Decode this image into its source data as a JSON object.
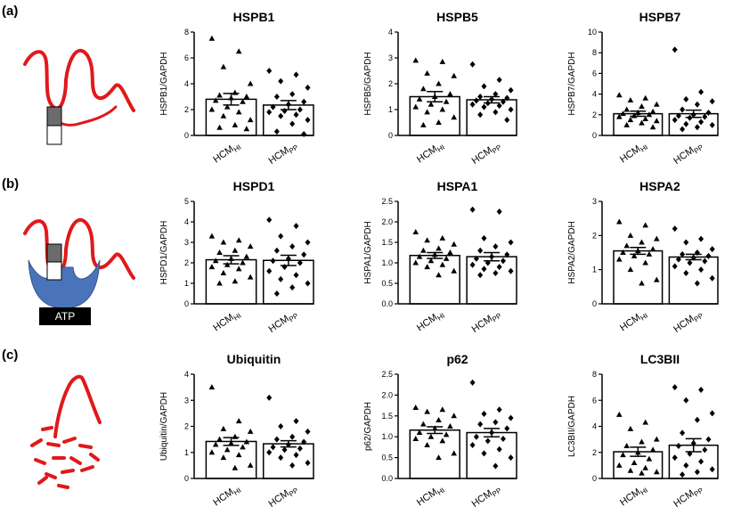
{
  "panel_labels": [
    "(a)",
    "(b)",
    "(c)"
  ],
  "illustration_labels": [
    "ATP"
  ],
  "chart_data": [
    {
      "type": "bar",
      "title": "HSPB1",
      "ylabel": "HSPB1/GAPDH",
      "categories": [
        "HCM",
        "HCM"
      ],
      "category_subscripts": [
        "HI",
        "PP"
      ],
      "values": [
        2.8,
        2.35
      ],
      "errors": [
        0.45,
        0.35
      ],
      "points": [
        [
          7.5,
          6.5,
          5.3,
          4.0,
          3.3,
          3.1,
          3.0,
          2.9,
          2.7,
          2.6,
          2.2,
          2.0,
          1.8,
          1.5,
          1.2,
          0.8,
          0.6,
          0.5
        ],
        [
          5.0,
          4.7,
          4.2,
          3.7,
          3.2,
          3.0,
          2.6,
          2.4,
          2.2,
          2.0,
          1.9,
          1.8,
          1.6,
          1.5,
          1.2,
          0.9,
          0.3,
          0.1
        ]
      ],
      "ylim": [
        0,
        8
      ],
      "yticks": [
        0,
        2,
        4,
        6,
        8
      ]
    },
    {
      "type": "bar",
      "title": "HSPB5",
      "ylabel": "HSPB5/GAPDH",
      "categories": [
        "HCM",
        "HCM"
      ],
      "category_subscripts": [
        "HI",
        "PP"
      ],
      "values": [
        1.5,
        1.38
      ],
      "errors": [
        0.2,
        0.12
      ],
      "points": [
        [
          2.9,
          2.85,
          2.4,
          2.3,
          2.0,
          1.8,
          1.6,
          1.5,
          1.4,
          1.3,
          1.2,
          1.1,
          1.0,
          0.9,
          0.7,
          0.5,
          0.4
        ],
        [
          2.75,
          2.15,
          1.9,
          1.75,
          1.6,
          1.5,
          1.45,
          1.4,
          1.35,
          1.3,
          1.25,
          1.2,
          1.15,
          1.1,
          1.0,
          0.9,
          0.8,
          0.6
        ]
      ],
      "ylim": [
        0,
        4
      ],
      "yticks": [
        0,
        1,
        2,
        3,
        4
      ]
    },
    {
      "type": "bar",
      "title": "HSPB7",
      "ylabel": "HSPB7/GAPDH",
      "categories": [
        "HCM",
        "HCM"
      ],
      "category_subscripts": [
        "HI",
        "PP"
      ],
      "values": [
        2.1,
        2.1
      ],
      "errors": [
        0.25,
        0.35
      ],
      "points": [
        [
          3.9,
          3.6,
          3.4,
          3.0,
          2.8,
          2.5,
          2.3,
          2.2,
          2.1,
          2.0,
          1.9,
          1.8,
          1.6,
          1.5,
          1.4,
          1.2,
          1.0,
          0.8
        ],
        [
          8.3,
          4.2,
          3.5,
          3.3,
          3.0,
          2.5,
          2.2,
          2.0,
          1.9,
          1.8,
          1.7,
          1.5,
          1.3,
          1.1,
          1.0,
          0.8,
          0.6
        ]
      ],
      "ylim": [
        0,
        10
      ],
      "yticks": [
        0,
        2,
        4,
        6,
        8,
        10
      ]
    },
    {
      "type": "bar",
      "title": "HSPD1",
      "ylabel": "HSPD1/GAPDH",
      "categories": [
        "HCM",
        "HCM"
      ],
      "category_subscripts": [
        "HI",
        "PP"
      ],
      "values": [
        2.15,
        2.12
      ],
      "errors": [
        0.2,
        0.25
      ],
      "points": [
        [
          3.3,
          3.1,
          3.0,
          2.8,
          2.6,
          2.5,
          2.3,
          2.2,
          2.1,
          2.0,
          1.9,
          1.8,
          1.7,
          1.5,
          1.3,
          1.1,
          1.0
        ],
        [
          4.1,
          3.8,
          3.3,
          3.0,
          2.8,
          2.6,
          2.4,
          2.2,
          2.1,
          2.0,
          1.8,
          1.6,
          1.4,
          1.2,
          1.0,
          0.8,
          0.5
        ]
      ],
      "ylim": [
        0,
        5
      ],
      "yticks": [
        0,
        1,
        2,
        3,
        4,
        5
      ]
    },
    {
      "type": "bar",
      "title": "HSPA1",
      "ylabel": "HSPA1/GAPDH",
      "categories": [
        "HCM",
        "HCM"
      ],
      "category_subscripts": [
        "HI",
        "PP"
      ],
      "values": [
        1.18,
        1.15
      ],
      "errors": [
        0.07,
        0.1
      ],
      "points": [
        [
          1.75,
          1.6,
          1.55,
          1.45,
          1.35,
          1.3,
          1.25,
          1.2,
          1.15,
          1.1,
          1.05,
          1.0,
          0.95,
          0.9,
          0.8,
          0.7
        ],
        [
          2.3,
          2.25,
          1.6,
          1.5,
          1.4,
          1.3,
          1.2,
          1.15,
          1.1,
          1.05,
          1.0,
          0.95,
          0.9,
          0.85,
          0.8,
          0.75,
          0.7
        ]
      ],
      "ylim": [
        0,
        2.5
      ],
      "yticks": [
        {
          "value": 0,
          "label": "0.0"
        },
        0.5,
        {
          "value": 1,
          "label": "1.0"
        },
        1.5,
        {
          "value": 2,
          "label": "2.0"
        },
        2.5
      ]
    },
    {
      "type": "bar",
      "title": "HSPA2",
      "ylabel": "HSPA2/GAPDH",
      "categories": [
        "HCM",
        "HCM"
      ],
      "category_subscripts": [
        "HI",
        "PP"
      ],
      "values": [
        1.55,
        1.37
      ],
      "errors": [
        0.1,
        0.08
      ],
      "points": [
        [
          2.4,
          2.3,
          2.0,
          1.9,
          1.8,
          1.7,
          1.6,
          1.55,
          1.5,
          1.45,
          1.4,
          1.3,
          1.2,
          1.0,
          0.7,
          0.6
        ],
        [
          2.2,
          1.9,
          1.8,
          1.6,
          1.5,
          1.45,
          1.4,
          1.35,
          1.3,
          1.25,
          1.2,
          1.1,
          1.0,
          0.9,
          0.75,
          0.6
        ]
      ],
      "ylim": [
        0,
        3
      ],
      "yticks": [
        0,
        1,
        2,
        3
      ]
    },
    {
      "type": "bar",
      "title": "Ubiquitin",
      "ylabel": "Ubiquitin/GAPDH",
      "categories": [
        "HCM",
        "HCM"
      ],
      "category_subscripts": [
        "HI",
        "PP"
      ],
      "values": [
        1.42,
        1.33
      ],
      "errors": [
        0.15,
        0.12
      ],
      "points": [
        [
          3.5,
          2.2,
          1.9,
          1.8,
          1.6,
          1.5,
          1.4,
          1.35,
          1.3,
          1.2,
          1.1,
          1.0,
          0.9,
          0.8,
          0.5,
          0.4
        ],
        [
          3.1,
          2.2,
          2.0,
          1.8,
          1.6,
          1.5,
          1.4,
          1.3,
          1.2,
          1.15,
          1.1,
          1.0,
          0.9,
          0.8,
          0.6,
          0.5
        ]
      ],
      "ylim": [
        0,
        4
      ],
      "yticks": [
        0,
        1,
        2,
        3,
        4
      ]
    },
    {
      "type": "bar",
      "title": "p62",
      "ylabel": "p62/GAPDH",
      "categories": [
        "HCM",
        "HCM"
      ],
      "category_subscripts": [
        "HI",
        "PP"
      ],
      "values": [
        1.16,
        1.1
      ],
      "errors": [
        0.08,
        0.1
      ],
      "points": [
        [
          1.7,
          1.65,
          1.6,
          1.5,
          1.4,
          1.3,
          1.25,
          1.2,
          1.1,
          1.05,
          1.0,
          0.95,
          0.9,
          0.8,
          0.6,
          0.5
        ],
        [
          2.3,
          1.65,
          1.55,
          1.45,
          1.35,
          1.3,
          1.2,
          1.1,
          1.0,
          0.95,
          0.9,
          0.8,
          0.7,
          0.6,
          0.5,
          0.3
        ]
      ],
      "ylim": [
        0,
        2.5
      ],
      "yticks": [
        {
          "value": 0,
          "label": "0.0"
        },
        0.5,
        {
          "value": 1,
          "label": "1.0"
        },
        1.5,
        {
          "value": 2,
          "label": "2.0"
        },
        2.5
      ]
    },
    {
      "type": "bar",
      "title": "LC3BII",
      "ylabel": "LC3BII/GAPDH",
      "categories": [
        "HCM",
        "HCM"
      ],
      "category_subscripts": [
        "HI",
        "PP"
      ],
      "values": [
        2.05,
        2.55
      ],
      "errors": [
        0.35,
        0.5
      ],
      "points": [
        [
          4.9,
          4.3,
          3.8,
          3.0,
          2.8,
          2.5,
          2.2,
          2.0,
          1.8,
          1.5,
          1.2,
          1.0,
          0.8,
          0.6,
          0.5,
          0.4
        ],
        [
          7.0,
          6.8,
          6.0,
          5.0,
          4.5,
          3.5,
          3.0,
          2.7,
          2.5,
          2.2,
          1.9,
          1.6,
          1.3,
          1.0,
          0.7,
          0.5,
          0.3
        ]
      ],
      "ylim": [
        0,
        8
      ],
      "yticks": [
        0,
        2,
        4,
        6,
        8
      ]
    }
  ]
}
